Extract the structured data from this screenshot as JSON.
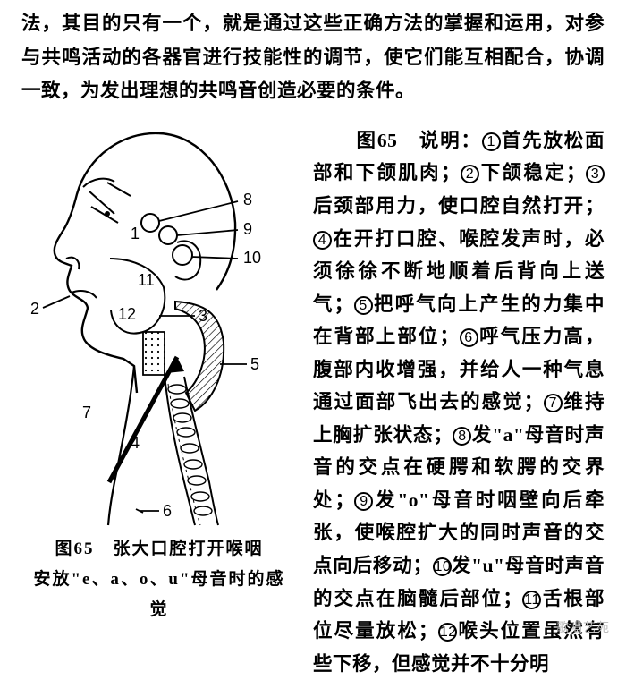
{
  "intro": "法，其目的只有一个，就是通过这些正确方法的掌握和运用，对参与共鸣活动的各器官进行技能性的调节，使它们能互相配合，协调一致，为发出理想的共鸣音创造必要的条件。",
  "figure": {
    "number_prefix": "图65",
    "caption_line1": "图65　张大口腔打开喉咽",
    "caption_line2": "安放\"e、a、o、u\"母音时的感觉",
    "labels": {
      "l1": "1",
      "l2": "2",
      "l3": "3",
      "l4": "4",
      "l5": "5",
      "l6": "6",
      "l7": "7",
      "l8": "8",
      "l9": "9",
      "l10": "10",
      "l11": "11",
      "l12": "12"
    },
    "stroke": "#000000",
    "bg": "#ffffff",
    "hatch": "#000000"
  },
  "desc": {
    "lead": "图65　说明：",
    "items": [
      {
        "n": "1",
        "t": "首先放松面部和下颌肌肉；"
      },
      {
        "n": "2",
        "t": "下颌稳定；"
      },
      {
        "n": "3",
        "t": "后颈部用力，使口腔自然打开；"
      },
      {
        "n": "4",
        "t": "在开打口腔、喉腔发声时，必须徐徐不断地顺着后背向上送气；"
      },
      {
        "n": "5",
        "t": "把呼气向上产生的力集中在背部上部位；"
      },
      {
        "n": "6",
        "t": "呼气压力高，腹部内收增强，并给人一种气息通过面部飞出去的感觉；"
      },
      {
        "n": "7",
        "t": "维持上胸扩张状态；"
      },
      {
        "n": "8",
        "t": "发\"a\"母音时声音的交点在硬腭和软腭的交界处；"
      },
      {
        "n": "9",
        "t": "发\"o\"母音时咽壁向后牵张，使喉腔扩大的同时声音的交点向后移动；"
      },
      {
        "n": "10",
        "t": "发\"u\"母音时声音的交点在脑髓后部位；"
      },
      {
        "n": "11",
        "t": "舌根部位尽量放松；"
      },
      {
        "n": "12",
        "t": "喉头位置虽然有些下移，但感觉并不十分明"
      }
    ]
  },
  "watermark": "歌唱艺苑",
  "colors": {
    "text": "#000000",
    "bg": "#ffffff",
    "wm": "#bdbdbd"
  }
}
